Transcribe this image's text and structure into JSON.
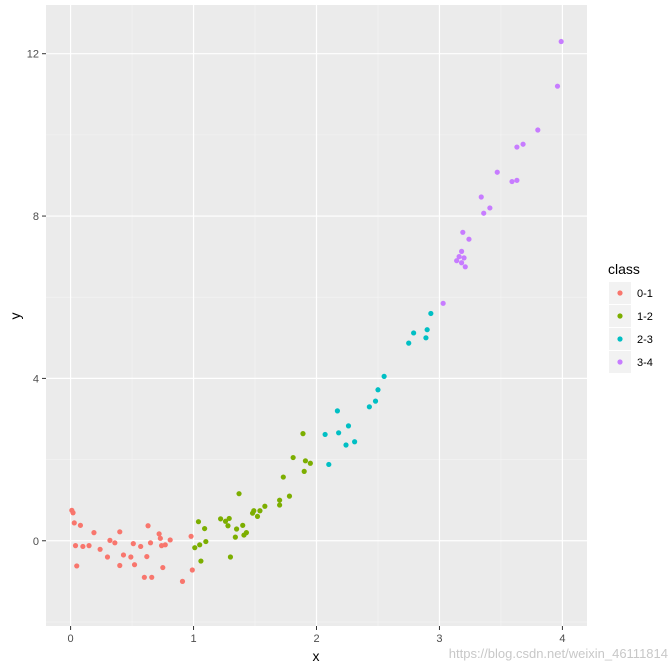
{
  "chart_data": {
    "type": "scatter",
    "xlabel": "x",
    "ylabel": "y",
    "xlim": [
      -0.2,
      4.2
    ],
    "ylim": [
      -2.1,
      13.2
    ],
    "x_ticks": [
      0,
      1,
      2,
      3,
      4
    ],
    "y_ticks": [
      0,
      4,
      8,
      12
    ],
    "grid": true,
    "legend": {
      "title": "class",
      "position": "right"
    },
    "series": [
      {
        "name": "0-1",
        "color": "#F8766D",
        "points": [
          [
            0.01,
            0.75
          ],
          [
            0.02,
            0.69
          ],
          [
            0.03,
            0.44
          ],
          [
            0.04,
            -0.12
          ],
          [
            0.05,
            -0.62
          ],
          [
            0.08,
            0.38
          ],
          [
            0.1,
            -0.14
          ],
          [
            0.15,
            -0.12
          ],
          [
            0.19,
            0.2
          ],
          [
            0.24,
            -0.21
          ],
          [
            0.3,
            -0.4
          ],
          [
            0.32,
            0.01
          ],
          [
            0.36,
            -0.05
          ],
          [
            0.4,
            0.22
          ],
          [
            0.4,
            -0.61
          ],
          [
            0.43,
            -0.35
          ],
          [
            0.49,
            -0.4
          ],
          [
            0.51,
            -0.07
          ],
          [
            0.52,
            -0.59
          ],
          [
            0.57,
            -0.14
          ],
          [
            0.6,
            -0.9
          ],
          [
            0.62,
            -0.39
          ],
          [
            0.63,
            0.37
          ],
          [
            0.65,
            -0.05
          ],
          [
            0.66,
            -0.9
          ],
          [
            0.72,
            0.17
          ],
          [
            0.73,
            0.06
          ],
          [
            0.74,
            -0.12
          ],
          [
            0.75,
            -0.66
          ],
          [
            0.77,
            -0.1
          ],
          [
            0.81,
            0.02
          ],
          [
            0.91,
            -1.0
          ],
          [
            0.98,
            0.11
          ],
          [
            0.99,
            -0.72
          ]
        ]
      },
      {
        "name": "1-2",
        "color": "#7CAE00",
        "points": [
          [
            1.01,
            -0.17
          ],
          [
            1.04,
            0.47
          ],
          [
            1.05,
            -0.1
          ],
          [
            1.06,
            -0.5
          ],
          [
            1.09,
            0.3
          ],
          [
            1.1,
            -0.02
          ],
          [
            1.22,
            0.54
          ],
          [
            1.26,
            0.48
          ],
          [
            1.28,
            0.37
          ],
          [
            1.29,
            0.55
          ],
          [
            1.3,
            -0.4
          ],
          [
            1.34,
            0.09
          ],
          [
            1.35,
            0.29
          ],
          [
            1.37,
            1.16
          ],
          [
            1.4,
            0.38
          ],
          [
            1.41,
            0.14
          ],
          [
            1.43,
            0.2
          ],
          [
            1.48,
            0.68
          ],
          [
            1.49,
            0.74
          ],
          [
            1.52,
            0.6
          ],
          [
            1.54,
            0.74
          ],
          [
            1.58,
            0.85
          ],
          [
            1.7,
            0.88
          ],
          [
            1.7,
            1.0
          ],
          [
            1.73,
            1.57
          ],
          [
            1.78,
            1.1
          ],
          [
            1.81,
            2.05
          ],
          [
            1.89,
            2.64
          ],
          [
            1.9,
            1.71
          ],
          [
            1.91,
            1.97
          ],
          [
            1.95,
            1.91
          ]
        ]
      },
      {
        "name": "2-3",
        "color": "#00BFC4",
        "points": [
          [
            2.07,
            2.62
          ],
          [
            2.1,
            1.88
          ],
          [
            2.17,
            3.2
          ],
          [
            2.18,
            2.66
          ],
          [
            2.24,
            2.36
          ],
          [
            2.26,
            2.83
          ],
          [
            2.31,
            2.44
          ],
          [
            2.43,
            3.3
          ],
          [
            2.48,
            3.44
          ],
          [
            2.5,
            3.72
          ],
          [
            2.55,
            4.05
          ],
          [
            2.75,
            4.87
          ],
          [
            2.79,
            5.12
          ],
          [
            2.89,
            5.0
          ],
          [
            2.9,
            5.2
          ],
          [
            2.93,
            5.6
          ]
        ]
      },
      {
        "name": "3-4",
        "color": "#C77CFF",
        "points": [
          [
            3.03,
            5.85
          ],
          [
            3.14,
            6.9
          ],
          [
            3.16,
            7.0
          ],
          [
            3.18,
            6.85
          ],
          [
            3.18,
            7.13
          ],
          [
            3.19,
            7.6
          ],
          [
            3.2,
            6.97
          ],
          [
            3.21,
            6.75
          ],
          [
            3.24,
            7.43
          ],
          [
            3.34,
            8.47
          ],
          [
            3.36,
            8.07
          ],
          [
            3.41,
            8.2
          ],
          [
            3.47,
            9.08
          ],
          [
            3.59,
            8.85
          ],
          [
            3.63,
            8.88
          ],
          [
            3.63,
            9.7
          ],
          [
            3.68,
            9.77
          ],
          [
            3.8,
            10.12
          ],
          [
            3.96,
            11.2
          ],
          [
            3.99,
            12.3
          ]
        ]
      }
    ]
  },
  "watermark": "https://blog.csdn.net/weixin_46111814"
}
